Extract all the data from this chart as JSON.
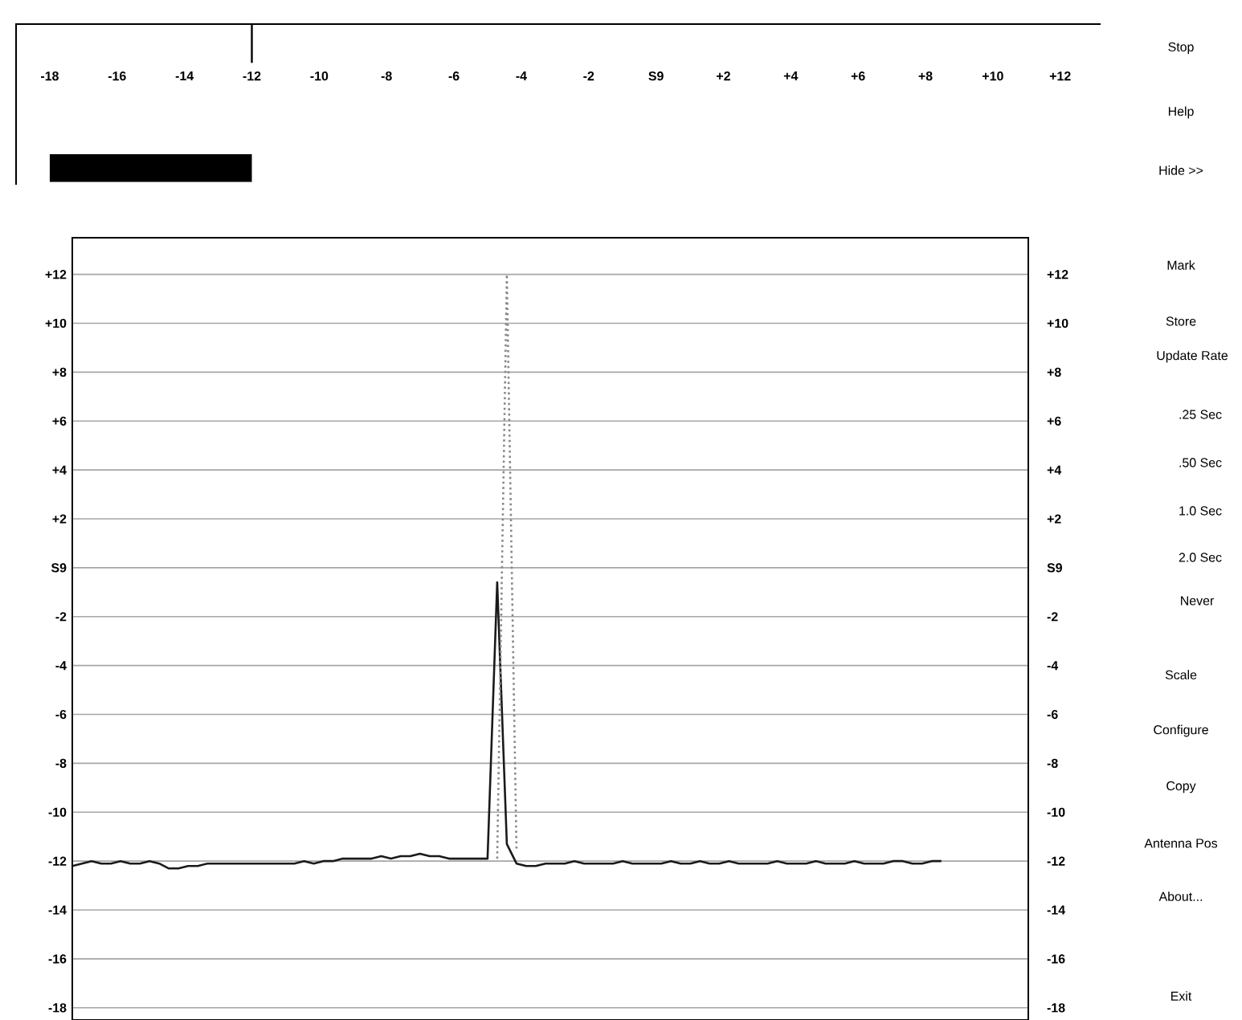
{
  "chart_data": [
    {
      "type": "bar",
      "orientation": "horizontal",
      "categories": [
        null
      ],
      "base": [
        -18
      ],
      "values": [
        6
      ],
      "color": "#000000",
      "xlim": [
        -19,
        13.2
      ],
      "xticks": [
        -18,
        -16,
        -14,
        -12,
        -10,
        -8,
        -6,
        -4,
        -2,
        {
          "value": 0,
          "label": "S9"
        },
        {
          "value": 2,
          "label": "+2"
        },
        {
          "value": 4,
          "label": "+4"
        },
        {
          "value": 6,
          "label": "+6"
        },
        {
          "value": 8,
          "label": "+8"
        },
        {
          "value": 10,
          "label": "+10"
        },
        {
          "value": 12,
          "label": "+12"
        }
      ],
      "ref_lines": [
        {
          "axis": "x",
          "value": -12,
          "color": "#000000"
        }
      ],
      "tick_labels": "x"
    },
    {
      "type": "line",
      "categories": [
        null,
        null,
        null,
        null,
        null,
        null,
        null,
        null,
        null,
        null,
        null,
        null,
        null,
        null,
        null,
        null,
        null,
        null,
        null,
        null,
        null,
        null,
        null,
        null,
        null,
        null,
        null,
        null,
        null,
        null,
        null,
        null,
        null,
        null,
        null,
        null,
        null,
        null,
        null,
        null,
        null,
        null,
        null,
        null,
        null,
        null,
        null,
        null,
        null,
        null,
        null,
        null,
        null,
        null,
        null,
        null,
        null,
        null,
        null,
        null,
        null,
        null,
        null,
        null,
        null,
        null,
        null,
        null,
        null,
        null,
        null,
        null,
        null,
        null,
        null,
        null,
        null,
        null,
        null,
        null,
        null,
        null,
        null,
        null,
        null,
        null,
        null,
        null,
        null,
        null,
        null,
        null,
        null,
        null,
        null,
        null,
        null,
        null,
        null,
        null
      ],
      "series": [
        {
          "color": "#1a1a1a",
          "line_style": "solid",
          "values": [
            -12.2,
            -12.1,
            -12.0,
            -12.1,
            -12.1,
            -12.0,
            -12.1,
            -12.1,
            -12.0,
            -12.1,
            -12.3,
            -12.3,
            -12.2,
            -12.2,
            -12.1,
            -12.1,
            -12.1,
            -12.1,
            -12.1,
            -12.1,
            -12.1,
            -12.1,
            -12.1,
            -12.1,
            -12.0,
            -12.1,
            -12.0,
            -12.0,
            -11.9,
            -11.9,
            -11.9,
            -11.9,
            -11.8,
            -11.9,
            -11.8,
            -11.8,
            -11.7,
            -11.8,
            -11.8,
            -11.9,
            -11.9,
            -11.9,
            -11.9,
            -11.9,
            -0.6,
            -11.3,
            -12.1,
            -12.2,
            -12.2,
            -12.1,
            -12.1,
            -12.1,
            -12.0,
            -12.1,
            -12.1,
            -12.1,
            -12.1,
            -12.0,
            -12.1,
            -12.1,
            -12.1,
            -12.1,
            -12.0,
            -12.1,
            -12.1,
            -12.0,
            -12.1,
            -12.1,
            -12.0,
            -12.1,
            -12.1,
            -12.1,
            -12.1,
            -12.0,
            -12.1,
            -12.1,
            -12.1,
            -12.0,
            -12.1,
            -12.1,
            -12.1,
            -12.0,
            -12.1,
            -12.1,
            -12.1,
            -12.0,
            -12.0,
            -12.1,
            -12.1,
            -12.0,
            -12.0,
            null,
            null,
            null,
            null,
            null,
            null,
            null,
            null,
            null
          ]
        },
        {
          "color": "#888888",
          "line_style": "dotted",
          "values": [
            null,
            null,
            null,
            null,
            null,
            null,
            null,
            null,
            null,
            null,
            null,
            null,
            null,
            null,
            null,
            null,
            null,
            null,
            null,
            null,
            null,
            null,
            null,
            null,
            null,
            null,
            null,
            null,
            null,
            null,
            null,
            null,
            null,
            null,
            null,
            null,
            null,
            null,
            null,
            null,
            null,
            null,
            null,
            null,
            -11.9,
            12,
            -11.6,
            null,
            null,
            null,
            null,
            null,
            null,
            null,
            null,
            null,
            null,
            null,
            null,
            null,
            null,
            null,
            null,
            null,
            null,
            null,
            null,
            null,
            null,
            null,
            null,
            null,
            null,
            null,
            null,
            null,
            null,
            null,
            null,
            null,
            null,
            null,
            null,
            null,
            null,
            null,
            null,
            null,
            null,
            null,
            null,
            null,
            null,
            null,
            null,
            null,
            null,
            null,
            null,
            null
          ]
        }
      ],
      "ylim": [
        -18.5,
        13.5
      ],
      "yticks": [
        {
          "value": 12,
          "label": "+12"
        },
        {
          "value": 10,
          "label": "+10"
        },
        {
          "value": 8,
          "label": "+8"
        },
        {
          "value": 6,
          "label": "+6"
        },
        {
          "value": 4,
          "label": "+4"
        },
        {
          "value": 2,
          "label": "+2"
        },
        {
          "value": 0,
          "label": "S9"
        },
        -2,
        -4,
        -6,
        -8,
        -10,
        -12,
        -14,
        -16,
        -18
      ],
      "y2lim": [
        -18.5,
        13.5
      ],
      "y2ticks": [
        {
          "value": 12,
          "label": "+12"
        },
        {
          "value": 10,
          "label": "+10"
        },
        {
          "value": 8,
          "label": "+8"
        },
        {
          "value": 6,
          "label": "+6"
        },
        {
          "value": 4,
          "label": "+4"
        },
        {
          "value": 2,
          "label": "+2"
        },
        {
          "value": 0,
          "label": "S9"
        },
        -2,
        -4,
        -6,
        -8,
        -10,
        -12,
        -14,
        -16,
        -18
      ],
      "grid": "y"
    },
    {
      "type": "other",
      "annotations": [
        "Stop",
        "Help",
        "Hide >>",
        "Mark",
        "Store",
        "Update Rate",
        ".25 Sec",
        ".50 Sec",
        "1.0 Sec",
        "2.0 Sec",
        "Never",
        "Scale",
        "Configure",
        "Copy",
        "Antenna Pos",
        "About...",
        "Exit"
      ]
    }
  ]
}
